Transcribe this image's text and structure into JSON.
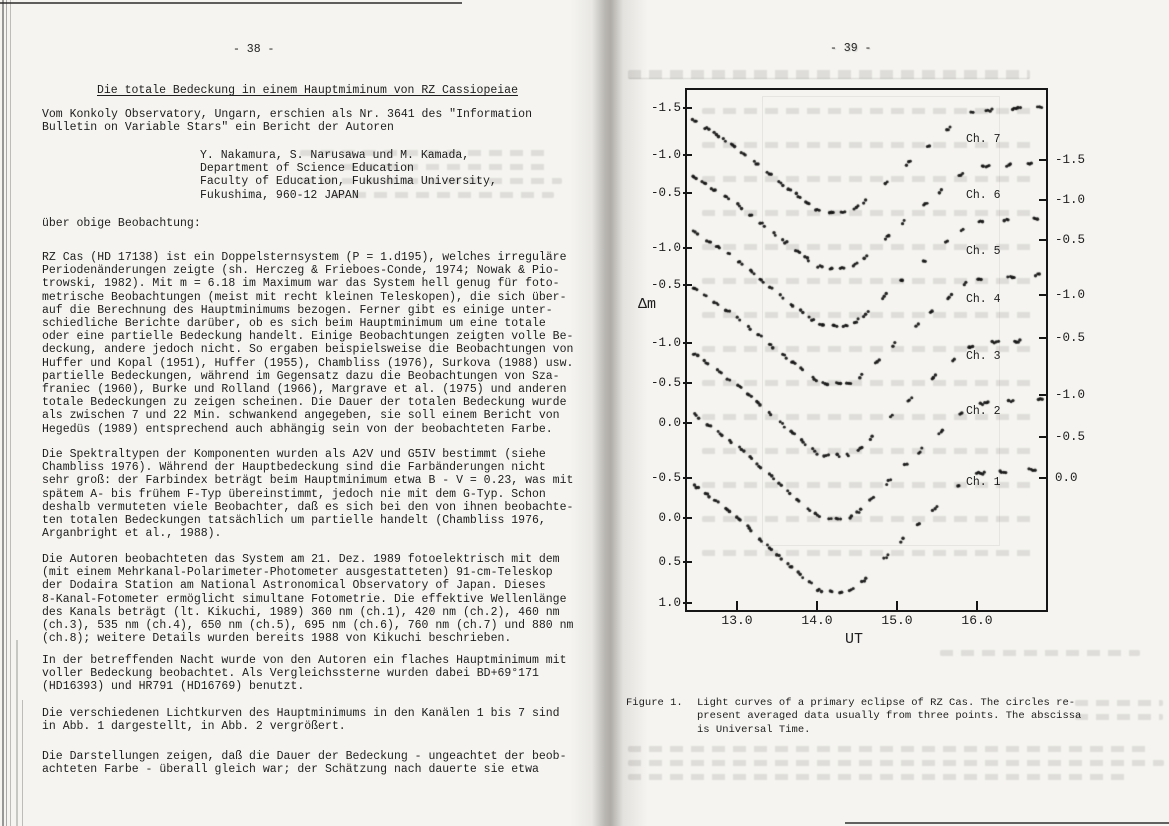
{
  "left_page": {
    "page_number": "- 38 -",
    "title": "Die totale Bedeckung in einem Hauptmiminum von RZ Cassiopeiae",
    "intro": "Vom Konkoly Observatory, Ungarn, erschien als Nr. 3641 des \"Information\nBulletin on Variable Stars\" ein Bericht der Autoren",
    "authors_block": "Y. Nakamura, S. Narusawa und M. Kamada,\nDepartment of Science Education\nFaculty of Education, Fukushima University,\nFukushima, 960-12 JAPAN",
    "lead_in": "über obige Beobachtung:",
    "paragraphs": [
      "RZ Cas (HD 17138) ist ein Doppelsternsystem (P = 1.d195), welches irreguläre\nPeriodenänderungen zeigte (sh. Herczeg & Frieboes-Conde, 1974; Nowak & Pio-\ntrowski, 1982). Mit m = 6.18 im Maximum war das System hell genug für foto-\nmetrische Beobachtungen (meist mit recht kleinen Teleskopen), die sich über-\nauf die Berechnung des Hauptminimums bezogen. Ferner gibt es einige unter-\nschiedliche Berichte darüber, ob es sich beim Hauptminimum um eine totale\noder eine partielle Bedeckung handelt. Einige Beobachtungen zeigten volle Be-\ndeckung, andere jedoch nicht. So ergaben beispielsweise die Beobachtungen von\nHuffer und Kopal (1951), Huffer (1955), Chambliss (1976), Surkova (1988) usw.\npartielle Bedeckungen, während im Gegensatz dazu die Beobachtungen von Sza-\nfraniec (1960), Burke und Rolland (1966), Margrave et al. (1975) und anderen\ntotale Bedeckungen zu zeigen scheinen. Die Dauer der totalen Bedeckung wurde\nals zwischen 7 und 22 Min. schwankend angegeben, sie soll einem Bericht von\nHegedüs (1989) entsprechend auch abhängig sein von der beobachteten Farbe.",
      "Die Spektraltypen der Komponenten wurden als A2V und G5IV bestimmt (siehe\nChambliss 1976). Während der Hauptbedeckung sind die Farbänderungen nicht\nsehr groß: der Farbindex beträgt beim Hauptminimum etwa B - V = 0.23, was mit\nspätem A- bis frühem F-Typ übereinstimmt, jedoch nie mit dem G-Typ. Schon\ndeshalb vermuteten viele Beobachter, daß es sich bei den von ihnen beobachte-\nten totalen Bedeckungen tatsächlich um partielle handelt (Chambliss 1976,\nArganbright et al., 1988).",
      "Die Autoren beobachteten das System am 21. Dez. 1989 fotoelektrisch mit dem\n(mit einem Mehrkanal-Polarimeter-Photometer ausgestatteten) 91-cm-Teleskop\nder Dodaira Station am National Astronomical Observatory of Japan. Dieses\n8-Kanal-Fotometer ermöglicht simultane Fotometrie. Die effektive Wellenlänge\ndes Kanals beträgt (lt. Kikuchi, 1989) 360 nm (ch.1), 420 nm (ch.2), 460 nm\n(ch.3), 535 nm (ch.4), 650 nm (ch.5), 695 nm (ch.6), 760 nm (ch.7) und 880 nm\n(ch.8); weitere Details wurden bereits 1988 von Kikuchi beschrieben.",
      "In der betreffenden Nacht wurde von den Autoren ein flaches Hauptminimum mit\nvoller Bedeckung beobachtet. Als Vergleichssterne wurden dabei BD+69°171\n(HD16393) und HR791 (HD16769) benutzt.",
      "Die verschiedenen Lichtkurven des Hauptminimums in den Kanälen 1 bis 7 sind\nin Abb. 1 dargestellt, in Abb. 2 vergrößert.",
      "Die Darstellungen zeigen, daß die Dauer der Bedeckung - ungeachtet der beob-\nachteten Farbe - überall gleich war; der Schätzung nach dauerte sie etwa"
    ]
  },
  "right_page": {
    "page_number": "- 39 -",
    "figure_caption_label": "Figure 1.",
    "figure_caption_text": "Light curves of a primary eclipse of RZ Cas. The circles re-\npresent averaged data usually from three points. The abscissa\nis Universal Time."
  },
  "chart_data": {
    "type": "scatter",
    "title": "Light curves of a primary eclipse of RZ Cas (channels 1 to 7)",
    "xlabel": "UT",
    "ylabel": "Δm",
    "x_tick_values": [
      13.0,
      14.0,
      15.0,
      16.0
    ],
    "x_tick_labels": [
      "13.0",
      "14.0",
      "15.0",
      "16.0"
    ],
    "ut_range_plotted": [
      12.45,
      16.78
    ],
    "left_axis_labels": [
      "-1.5",
      "-1.0",
      "-0.5",
      "-1.0",
      "-0.5",
      "-1.0",
      "-0.5",
      "0.0",
      "-0.5",
      "0.0",
      "0.5",
      "1.0"
    ],
    "right_axis_labels": [
      "-1.5",
      "-1.0",
      "-0.5",
      "-1.0",
      "-0.5",
      "-1.0",
      "-0.5",
      "0.0"
    ],
    "mag_per_half_tick": 0.5,
    "channels": [
      {
        "name": "Ch. 7",
        "depth_mag_approx": 1.25
      },
      {
        "name": "Ch. 6",
        "depth_mag_approx": 1.25
      },
      {
        "name": "Ch. 5",
        "depth_mag_approx": 1.28
      },
      {
        "name": "Ch. 4",
        "depth_mag_approx": 1.29
      },
      {
        "name": "Ch. 3",
        "depth_mag_approx": 1.38
      },
      {
        "name": "Ch. 2",
        "depth_mag_approx": 1.41
      },
      {
        "name": "Ch. 1",
        "depth_mag_approx": 1.46
      }
    ],
    "eclipse_profile_ut_vs_depth_fraction": [
      [
        12.3,
        0.0
      ],
      [
        13.0,
        0.36
      ],
      [
        13.5,
        0.68
      ],
      [
        13.8,
        0.86
      ],
      [
        14.0,
        0.98
      ],
      [
        14.08,
        1.0
      ],
      [
        14.42,
        1.0
      ],
      [
        14.55,
        0.93
      ],
      [
        14.8,
        0.75
      ],
      [
        15.0,
        0.6
      ],
      [
        15.3,
        0.4
      ],
      [
        15.6,
        0.2
      ],
      [
        15.88,
        0.02
      ],
      [
        16.0,
        -0.01
      ],
      [
        16.4,
        -0.03
      ],
      [
        16.78,
        -0.05
      ]
    ],
    "flat_minimum_ut": [
      14.08,
      14.42
    ],
    "notes": "Seven vertically offset light curves, each with its own magnitude scale; alternating tick labels on left and right axes."
  },
  "colors": {
    "paper": "#f5f4f0",
    "ink": "#1d1d1d",
    "plot_line": "#161616"
  }
}
